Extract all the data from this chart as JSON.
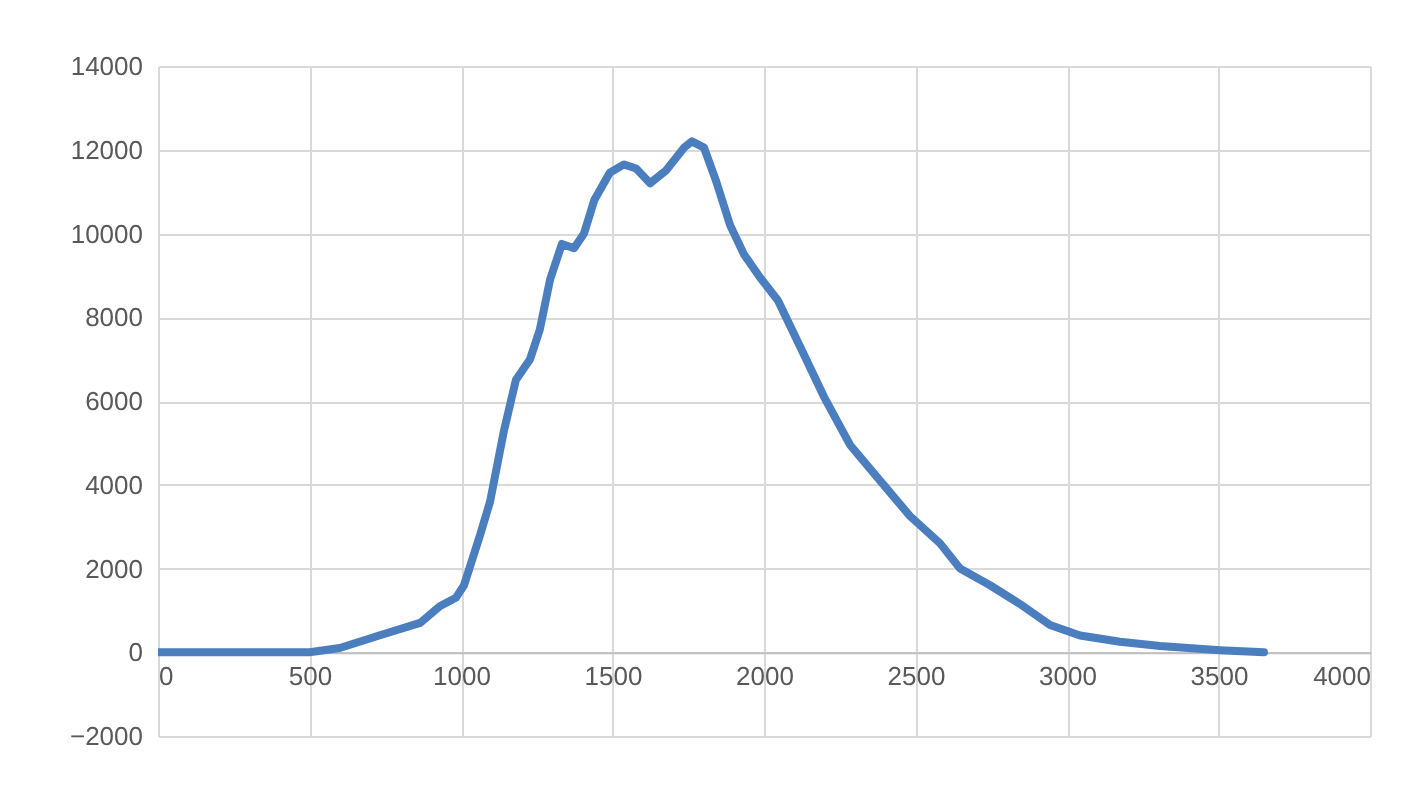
{
  "chart_data": {
    "type": "line",
    "x": [
      0,
      500,
      600,
      730,
      865,
      930,
      983,
      1010,
      1063,
      1096,
      1142,
      1181,
      1228,
      1260,
      1294,
      1333,
      1373,
      1406,
      1440,
      1491,
      1538,
      1578,
      1624,
      1676,
      1736,
      1762,
      1802,
      1842,
      1888,
      1934,
      1987,
      2046,
      2119,
      2198,
      2284,
      2383,
      2482,
      2581,
      2647,
      2746,
      2845,
      2944,
      3043,
      3175,
      3307,
      3505,
      3650
    ],
    "series": [
      {
        "color": "#4a7ebf",
        "values": [
          0,
          0,
          100,
          400,
          700,
          1100,
          1300,
          1600,
          2800,
          3600,
          5300,
          6500,
          7000,
          7700,
          8900,
          9750,
          9650,
          10000,
          10800,
          11450,
          11650,
          11550,
          11200,
          11500,
          12050,
          12200,
          12050,
          11250,
          10200,
          9500,
          8950,
          8400,
          7300,
          6100,
          4950,
          4100,
          3250,
          2600,
          2000,
          1600,
          1150,
          650,
          400,
          250,
          150,
          50,
          0
        ]
      }
    ],
    "xlim": [
      0,
      4000
    ],
    "xticks": [
      0,
      500,
      1000,
      1500,
      2000,
      2500,
      3000,
      3500,
      4000
    ],
    "ylim": [
      -2000,
      14000
    ],
    "yticks": [
      -2000,
      0,
      2000,
      4000,
      6000,
      8000,
      10000,
      12000,
      14000
    ],
    "grid": true,
    "marker": "none",
    "line_style": "solid"
  }
}
